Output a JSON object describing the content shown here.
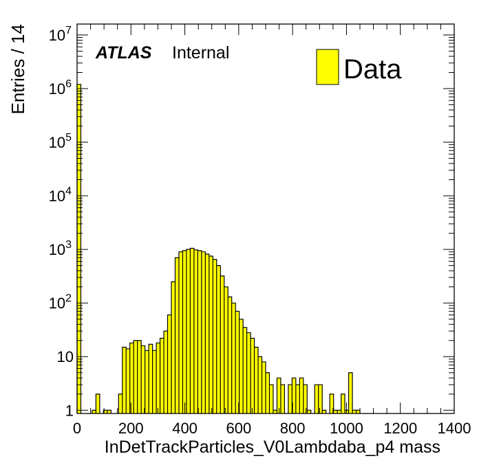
{
  "chart_data": {
    "type": "bar",
    "ylabel": "Entries / 14",
    "xlabel": "InDetTrackParticles_V0Lambdaba_p4 mass",
    "atlas_label": "ATLAS",
    "atlas_sublabel": "Internal",
    "legend": {
      "label": "Data",
      "placement": "top-right"
    },
    "fill_color": "#ffff00",
    "line_color": "#000000",
    "x_scale": "linear",
    "y_scale": "log",
    "xlim": [
      0,
      1400
    ],
    "ylim": [
      0.87,
      16000000
    ],
    "bin_width": 14,
    "x_ticks": [
      0,
      200,
      400,
      600,
      800,
      1000,
      1200,
      1400
    ],
    "y_ticks": [
      {
        "value": 1,
        "mantissa": "1",
        "exp": ""
      },
      {
        "value": 10,
        "mantissa": "10",
        "exp": ""
      },
      {
        "value": 100,
        "mantissa": "10",
        "exp": "2"
      },
      {
        "value": 1000,
        "mantissa": "10",
        "exp": "3"
      },
      {
        "value": 10000,
        "mantissa": "10",
        "exp": "4"
      },
      {
        "value": 100000,
        "mantissa": "10",
        "exp": "5"
      },
      {
        "value": 1000000,
        "mantissa": "10",
        "exp": "6"
      },
      {
        "value": 10000000,
        "mantissa": "10",
        "exp": "7"
      }
    ],
    "bins": [
      [
        0,
        1200000
      ],
      [
        56,
        1
      ],
      [
        70,
        2
      ],
      [
        98,
        1
      ],
      [
        112,
        1
      ],
      [
        154,
        2
      ],
      [
        168,
        15
      ],
      [
        182,
        14
      ],
      [
        196,
        18
      ],
      [
        210,
        20
      ],
      [
        224,
        20
      ],
      [
        238,
        16
      ],
      [
        252,
        13
      ],
      [
        266,
        17
      ],
      [
        280,
        13
      ],
      [
        294,
        18
      ],
      [
        308,
        22
      ],
      [
        322,
        30
      ],
      [
        336,
        60
      ],
      [
        350,
        250
      ],
      [
        364,
        700
      ],
      [
        378,
        900
      ],
      [
        392,
        950
      ],
      [
        406,
        1000
      ],
      [
        420,
        1050
      ],
      [
        434,
        980
      ],
      [
        448,
        950
      ],
      [
        462,
        900
      ],
      [
        476,
        820
      ],
      [
        490,
        750
      ],
      [
        504,
        650
      ],
      [
        518,
        500
      ],
      [
        532,
        320
      ],
      [
        546,
        200
      ],
      [
        560,
        130
      ],
      [
        574,
        100
      ],
      [
        588,
        70
      ],
      [
        602,
        50
      ],
      [
        616,
        35
      ],
      [
        630,
        28
      ],
      [
        644,
        22
      ],
      [
        658,
        15
      ],
      [
        672,
        10
      ],
      [
        686,
        8
      ],
      [
        700,
        5
      ],
      [
        714,
        3
      ],
      [
        728,
        1
      ],
      [
        742,
        4
      ],
      [
        756,
        3
      ],
      [
        784,
        3
      ],
      [
        798,
        4
      ],
      [
        812,
        3
      ],
      [
        826,
        4
      ],
      [
        840,
        3
      ],
      [
        854,
        1
      ],
      [
        882,
        3
      ],
      [
        896,
        3
      ],
      [
        910,
        1
      ],
      [
        938,
        2
      ],
      [
        952,
        1
      ],
      [
        966,
        1
      ],
      [
        980,
        2
      ],
      [
        994,
        1
      ],
      [
        1008,
        5
      ],
      [
        1022,
        1
      ],
      [
        1036,
        1
      ]
    ]
  }
}
